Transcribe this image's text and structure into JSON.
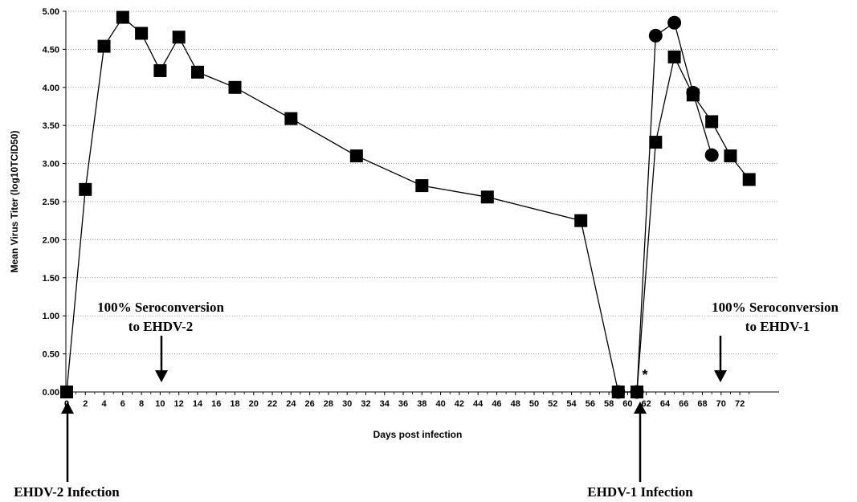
{
  "chart_data": {
    "type": "line",
    "xlabel": "Days post infection",
    "ylabel": "Mean Virus Titer (log10TCID50)",
    "ylim": [
      0,
      5
    ],
    "y_ticks": [
      "0.00",
      "0.50",
      "1.00",
      "1.50",
      "2.00",
      "2.50",
      "3.00",
      "3.50",
      "4.00",
      "4.50",
      "5.00"
    ],
    "x_ticks": [
      "0",
      "2",
      "4",
      "6",
      "8",
      "10",
      "12",
      "14",
      "16",
      "18",
      "20",
      "22",
      "24",
      "26",
      "28",
      "30",
      "32",
      "34",
      "36",
      "38",
      "40",
      "42",
      "44",
      "46",
      "48",
      "50",
      "52",
      "54",
      "56",
      "58",
      "60",
      "62",
      "64",
      "66",
      "68",
      "70",
      "72"
    ],
    "grid": "horizontal dotted",
    "series": [
      {
        "marker": "square",
        "color": "#000000",
        "points": [
          [
            0,
            0.0
          ],
          [
            2,
            2.66
          ],
          [
            4,
            4.54
          ],
          [
            6,
            4.92
          ],
          [
            8,
            4.71
          ],
          [
            10,
            4.22
          ],
          [
            12,
            4.66
          ],
          [
            14,
            4.2
          ],
          [
            18,
            4.0
          ],
          [
            24,
            3.59
          ],
          [
            31,
            3.1
          ],
          [
            38,
            2.71
          ],
          [
            45,
            2.56
          ],
          [
            55,
            2.25
          ],
          [
            59,
            0.0
          ],
          [
            61,
            0.0
          ],
          [
            63,
            3.28
          ],
          [
            65,
            4.4
          ],
          [
            67,
            3.9
          ],
          [
            69,
            3.55
          ],
          [
            71,
            3.1
          ],
          [
            73,
            2.79
          ]
        ]
      },
      {
        "marker": "circle",
        "color": "#000000",
        "points": [
          [
            59,
            0.0
          ],
          [
            61,
            0.0
          ],
          [
            63,
            4.68
          ],
          [
            65,
            4.85
          ],
          [
            67,
            3.93
          ],
          [
            69,
            3.11
          ]
        ]
      }
    ],
    "annotations": [
      {
        "text_lines": [
          "100% Seroconversion",
          "to EHDV-2"
        ],
        "arrow": "down",
        "x": 10
      },
      {
        "text_lines": [
          "100% Seroconversion",
          "to EHDV-1"
        ],
        "arrow": "down",
        "x": 67
      },
      {
        "text": "EHDV-2 Infection",
        "arrow": "up",
        "x": 0
      },
      {
        "text": "EHDV-1 Infection",
        "arrow": "up",
        "x": 59
      },
      {
        "text": "*",
        "x": 59.5
      }
    ]
  }
}
